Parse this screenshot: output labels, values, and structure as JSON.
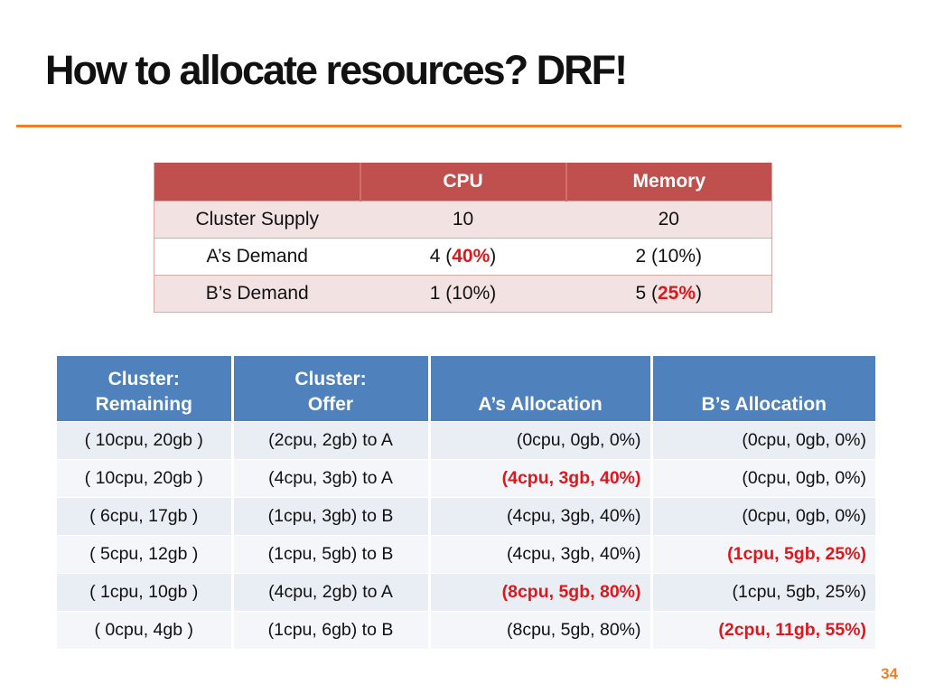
{
  "title": "How to allocate resources?  DRF!",
  "colors": {
    "accent": "#ef7f22",
    "table1_header": "#c0504d",
    "table2_header": "#4f81bd",
    "highlight": "#e0161b"
  },
  "supply_table": {
    "headers": [
      "",
      "CPU",
      "Memory"
    ],
    "rows": [
      {
        "label": "Cluster Supply",
        "cpu_pre": "10",
        "cpu_pct": "",
        "cpu_post": "",
        "mem_pre": "20",
        "mem_pct": "",
        "mem_post": ""
      },
      {
        "label": "A’s Demand",
        "cpu_pre": "4 (",
        "cpu_pct": "40%",
        "cpu_post": ")",
        "mem_pre": "2 (10%)",
        "mem_pct": "",
        "mem_post": ""
      },
      {
        "label": "B’s Demand",
        "cpu_pre": "1 (10%)",
        "cpu_pct": "",
        "cpu_post": "",
        "mem_pre": "5 (",
        "mem_pct": "25%",
        "mem_post": ")"
      }
    ]
  },
  "allocation_table": {
    "headers": [
      {
        "line1": "Cluster:",
        "line2": "Remaining"
      },
      {
        "line1": "Cluster:",
        "line2": "Offer"
      },
      {
        "line1": "",
        "line2": "A’s Allocation"
      },
      {
        "line1": "",
        "line2": "B’s Allocation"
      }
    ],
    "rows": [
      [
        "( 10cpu, 20gb )",
        "(2cpu, 2gb) to A",
        "(0cpu, 0gb, 0%)",
        "(0cpu, 0gb, 0%)"
      ],
      [
        "( 10cpu, 20gb )",
        "(4cpu, 3gb) to A",
        "(4cpu, 3gb, 40%)",
        "(0cpu, 0gb, 0%)"
      ],
      [
        "( 6cpu, 17gb )",
        "(1cpu, 3gb) to B",
        "(4cpu, 3gb, 40%)",
        "(0cpu, 0gb, 0%)"
      ],
      [
        "( 5cpu, 12gb )",
        "(1cpu, 5gb) to B",
        "(4cpu, 3gb, 40%)",
        "(1cpu, 5gb, 25%)"
      ],
      [
        "( 1cpu, 10gb )",
        "(4cpu, 2gb) to A",
        "(8cpu, 5gb, 80%)",
        "(1cpu, 5gb, 25%)"
      ],
      [
        "( 0cpu, 4gb )",
        "(1cpu, 6gb) to B",
        "(8cpu, 5gb, 80%)",
        "(2cpu, 11gb, 55%)"
      ]
    ],
    "highlighted": [
      [
        1,
        2
      ],
      [
        3,
        3
      ],
      [
        4,
        2
      ],
      [
        5,
        3
      ]
    ]
  },
  "page_number": "34"
}
